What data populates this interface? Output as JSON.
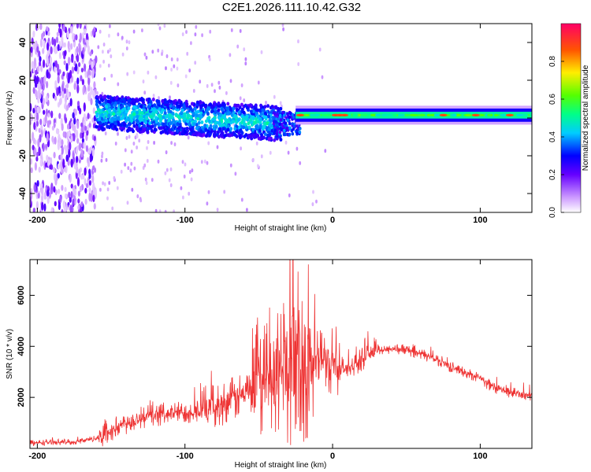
{
  "page_title": "C2E1.2026.111.10.42.G32",
  "chart_data": [
    {
      "type": "heatmap",
      "name": "spectrogram",
      "xlabel": "Height of straight line (km)",
      "ylabel": "Frequency (Hz)",
      "xlim": [
        -205,
        135
      ],
      "ylim": [
        -50,
        50
      ],
      "xticks": [
        -200,
        -100,
        0,
        100
      ],
      "yticks": [
        -40,
        -20,
        0,
        20,
        40
      ],
      "colorbar": {
        "label": "Normalized spectral amplitude",
        "range": [
          0,
          1
        ],
        "ticks": [
          "0.0",
          "0.2",
          "0.4",
          "0.6",
          "0.8"
        ]
      },
      "regions": [
        {
          "name": "noise",
          "x": [
            -205,
            -160
          ],
          "freq": [
            -50,
            50
          ],
          "amplitude": 0.05
        },
        {
          "name": "wide-band",
          "x": [
            -160,
            -35
          ],
          "center_freq": 3,
          "halfwidth": 9,
          "amplitude": 0.3
        },
        {
          "name": "narrow-tone",
          "x": [
            -25,
            135
          ],
          "center_freq": 1.5,
          "halfwidth": 2,
          "amplitude": 0.55
        }
      ]
    },
    {
      "type": "line",
      "name": "snr",
      "xlabel": "Height of straight line (km)",
      "ylabel": "SNR (10 * v/v)",
      "xlim": [
        -205,
        135
      ],
      "ylim": [
        0,
        7400
      ],
      "xticks": [
        -200,
        -100,
        0,
        100
      ],
      "yticks": [
        2000,
        4000,
        6000
      ],
      "color": "#ee3333",
      "series": [
        {
          "name": "SNR",
          "x": [
            -205,
            -190,
            -175,
            -160,
            -150,
            -140,
            -130,
            -120,
            -110,
            -100,
            -90,
            -80,
            -70,
            -60,
            -50,
            -45,
            -40,
            -35,
            -30,
            -25,
            -20,
            -15,
            -10,
            -5,
            0,
            5,
            10,
            15,
            20,
            25,
            30,
            40,
            50,
            60,
            70,
            80,
            90,
            100,
            105,
            110,
            120,
            130,
            135
          ],
          "y": [
            200,
            250,
            250,
            400,
            700,
            1000,
            1200,
            1300,
            1400,
            1400,
            1500,
            1650,
            1900,
            2100,
            2400,
            2600,
            2800,
            3000,
            3100,
            3200,
            3200,
            3400,
            3500,
            3500,
            3300,
            3200,
            3100,
            3300,
            3500,
            3700,
            3850,
            3900,
            3850,
            3700,
            3500,
            3200,
            2950,
            2800,
            2500,
            2350,
            2200,
            2100,
            2050
          ]
        }
      ]
    }
  ],
  "colors": {
    "series": "#ee3333",
    "axis": "#000000",
    "background": "#ffffff"
  }
}
